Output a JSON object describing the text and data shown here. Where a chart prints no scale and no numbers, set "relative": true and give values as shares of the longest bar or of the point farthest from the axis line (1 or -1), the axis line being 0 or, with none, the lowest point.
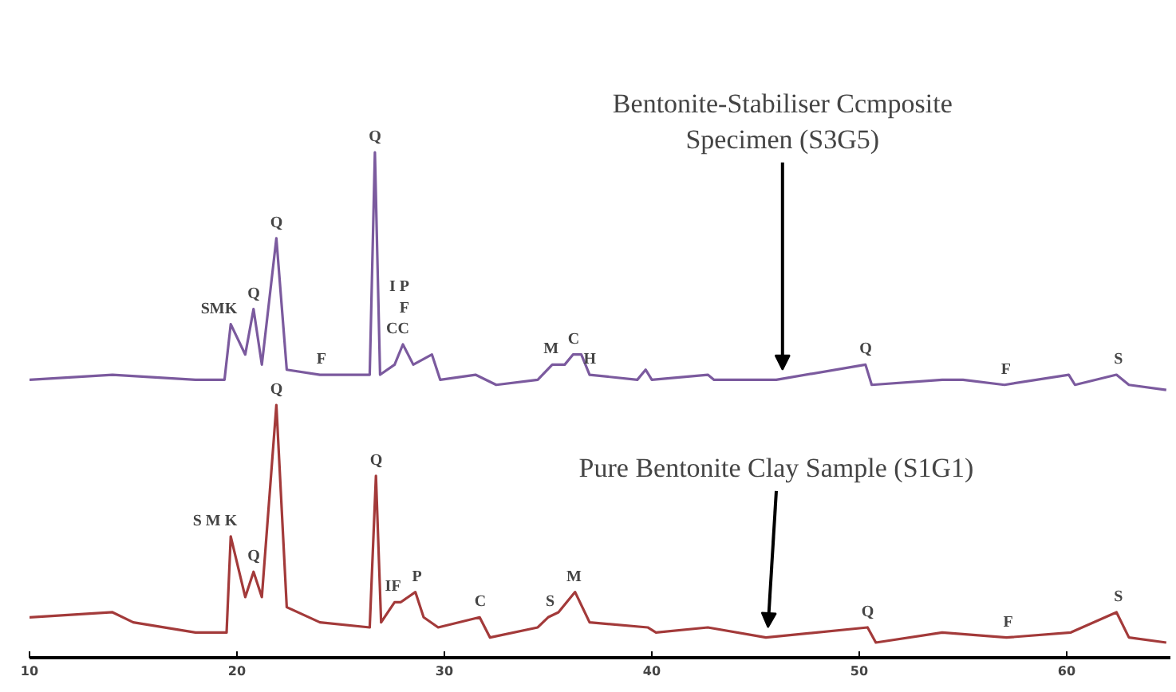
{
  "chart_data": {
    "type": "line",
    "relative": true,
    "xlim": [
      10,
      65
    ],
    "xticks": [
      10,
      20,
      30,
      40,
      50,
      60
    ],
    "grid": false,
    "marker": "none",
    "line_style": "solid",
    "series": [
      {
        "color": "#7b5a9e",
        "x": [
          10,
          14,
          18,
          19.4,
          19.7,
          20.4,
          20.8,
          21.2,
          21.9,
          22.4,
          24,
          26.4,
          26.65,
          26.9,
          27.6,
          28.0,
          28.5,
          29.4,
          29.8,
          31.5,
          32.5,
          34.5,
          35.2,
          35.8,
          36.2,
          36.6,
          37,
          39.3,
          39.7,
          40,
          42.7,
          43,
          46,
          50.3,
          50.6,
          54,
          55,
          57,
          60.1,
          60.4,
          62.4,
          63,
          64.8
        ],
        "values": [
          0.55,
          0.56,
          0.55,
          0.55,
          0.66,
          0.6,
          0.69,
          0.58,
          0.83,
          0.57,
          0.56,
          0.56,
          1.0,
          0.56,
          0.58,
          0.62,
          0.58,
          0.6,
          0.55,
          0.56,
          0.54,
          0.55,
          0.58,
          0.58,
          0.6,
          0.6,
          0.56,
          0.55,
          0.57,
          0.55,
          0.56,
          0.55,
          0.55,
          0.58,
          0.54,
          0.55,
          0.55,
          0.54,
          0.56,
          0.54,
          0.56,
          0.54,
          0.53
        ]
      },
      {
        "color": "#a33a3a",
        "x": [
          10,
          14,
          15,
          18,
          19.5,
          19.7,
          20.4,
          20.8,
          21.2,
          21.9,
          22.4,
          24,
          26.4,
          26.7,
          26.95,
          27.6,
          27.9,
          28.6,
          29,
          29.7,
          31.7,
          32.2,
          34.5,
          35,
          35.5,
          36.3,
          37,
          39.8,
          40.2,
          42.7,
          45.5,
          50.4,
          50.8,
          54,
          57.1,
          60.2,
          62.4,
          63,
          64.8
        ],
        "values": [
          0.08,
          0.09,
          0.07,
          0.05,
          0.05,
          0.24,
          0.12,
          0.17,
          0.12,
          0.5,
          0.1,
          0.07,
          0.06,
          0.36,
          0.07,
          0.11,
          0.11,
          0.13,
          0.08,
          0.06,
          0.08,
          0.04,
          0.06,
          0.08,
          0.09,
          0.13,
          0.07,
          0.06,
          0.05,
          0.06,
          0.04,
          0.06,
          0.03,
          0.05,
          0.04,
          0.05,
          0.09,
          0.04,
          0.03
        ]
      }
    ],
    "annotations": [
      {
        "text": "Bentonite-Stabiliser Ccmposite\nSpecimen (S3G5)",
        "x": 46.3,
        "y": 0.56
      },
      {
        "text": "Pure Bentonite Clay Sample (S1G1)",
        "x": 45.6,
        "y": 0.05
      },
      {
        "text": "SMK",
        "x": 19.7,
        "y": 0.66
      },
      {
        "text": "Q",
        "x": 20.8,
        "y": 0.69
      },
      {
        "text": "Q",
        "x": 21.9,
        "y": 0.83
      },
      {
        "text": "F",
        "x": 24,
        "y": 0.56
      },
      {
        "text": "Q",
        "x": 26.65,
        "y": 1.0
      },
      {
        "text": "I P\nF\nCC",
        "x": 28.0,
        "y": 0.62
      },
      {
        "text": "M",
        "x": 35.2,
        "y": 0.58
      },
      {
        "text": "C",
        "x": 36.2,
        "y": 0.6
      },
      {
        "text": "H",
        "x": 37,
        "y": 0.56
      },
      {
        "text": "Q",
        "x": 50.3,
        "y": 0.58
      },
      {
        "text": "F",
        "x": 57,
        "y": 0.54
      },
      {
        "text": "S",
        "x": 62.4,
        "y": 0.56
      },
      {
        "text": "S M K",
        "x": 19.7,
        "y": 0.24
      },
      {
        "text": "Q",
        "x": 20.8,
        "y": 0.17
      },
      {
        "text": "Q",
        "x": 21.9,
        "y": 0.5
      },
      {
        "text": "Q",
        "x": 26.7,
        "y": 0.36
      },
      {
        "text": "IF",
        "x": 27.6,
        "y": 0.11
      },
      {
        "text": "P",
        "x": 28.6,
        "y": 0.13
      },
      {
        "text": "C",
        "x": 31.7,
        "y": 0.08
      },
      {
        "text": "S",
        "x": 35,
        "y": 0.08
      },
      {
        "text": "M",
        "x": 36.3,
        "y": 0.13
      },
      {
        "text": "Q",
        "x": 50.4,
        "y": 0.06
      },
      {
        "text": "F",
        "x": 57.1,
        "y": 0.04
      },
      {
        "text": "S",
        "x": 62.4,
        "y": 0.09
      }
    ]
  }
}
